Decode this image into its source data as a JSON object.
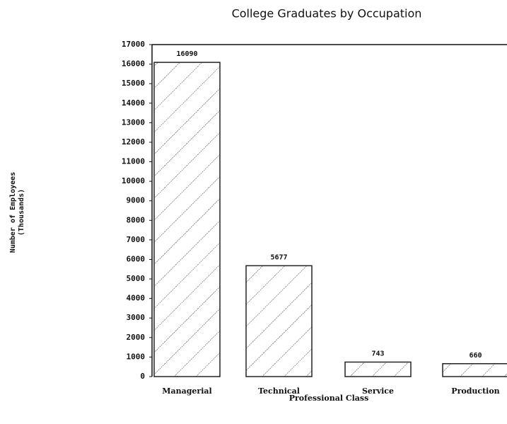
{
  "chart_data": {
    "type": "bar",
    "title": "College Graduates by Occupation",
    "x_label": "Professional Class",
    "y_label": [
      "Number of Employees",
      "(Thousands)"
    ],
    "categories": [
      "Managerial",
      "Technical",
      "Service",
      "Production"
    ],
    "values": [
      16090,
      5677,
      743,
      660
    ],
    "color": "#222222",
    "ylim": [
      0,
      17000
    ],
    "yticks": [
      0,
      1000,
      2000,
      3000,
      4000,
      5000,
      6000,
      7000,
      8000,
      9000,
      10000,
      11000,
      12000,
      13000,
      14000,
      15000,
      16000,
      17000
    ],
    "grid": false
  }
}
